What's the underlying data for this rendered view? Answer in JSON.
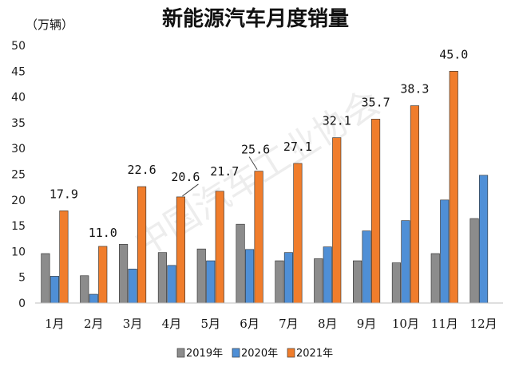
{
  "chart_data": {
    "type": "bar",
    "title": "新能源汽车月度销量",
    "ylabel": "（万辆）",
    "xlabel": "",
    "ylim": [
      0,
      50
    ],
    "yticks": [
      0,
      5,
      10,
      15,
      20,
      25,
      30,
      35,
      40,
      45,
      50
    ],
    "categories": [
      "1月",
      "2月",
      "3月",
      "4月",
      "5月",
      "6月",
      "7月",
      "8月",
      "9月",
      "10月",
      "11月",
      "12月"
    ],
    "series": [
      {
        "name": "2019年",
        "color": "#8c8c8c",
        "values": [
          9.6,
          5.3,
          11.4,
          9.8,
          10.5,
          15.3,
          8.2,
          8.6,
          8.2,
          7.8,
          9.6,
          16.4
        ]
      },
      {
        "name": "2020年",
        "color": "#4f8fd6",
        "values": [
          5.2,
          1.7,
          6.6,
          7.3,
          8.2,
          10.4,
          9.8,
          10.9,
          14.0,
          16.0,
          20.0,
          24.8
        ]
      },
      {
        "name": "2021年",
        "color": "#f07d2c",
        "values": [
          17.9,
          11.0,
          22.6,
          20.6,
          21.7,
          25.6,
          27.1,
          32.1,
          35.7,
          38.3,
          45.0,
          null
        ]
      }
    ],
    "data_labels": [
      "17.9",
      "11.0",
      "22.6",
      "20.6",
      "21.7",
      "25.6",
      "27.1",
      "32.1",
      "35.7",
      "38.3",
      "45.0",
      ""
    ],
    "legend_position": "bottom",
    "grid": false
  }
}
